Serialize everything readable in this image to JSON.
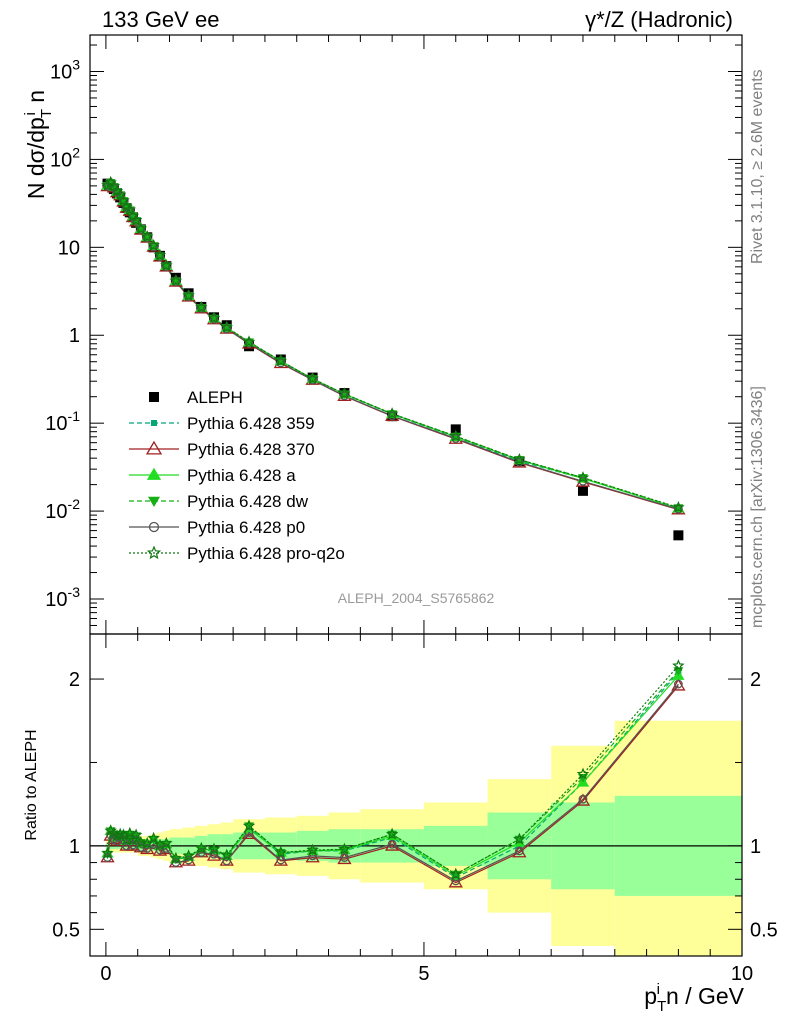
{
  "header": {
    "left": "133 GeV ee",
    "right": "γ*/Z (Hadronic)"
  },
  "side_labels": {
    "rivet": "Rivet 3.1.10, ≥ 2.6M events",
    "mcplots": "mcplots.cern.ch [arXiv:1306.3436]"
  },
  "watermark": "ALEPH_2004_S5765862",
  "chart_data": [
    {
      "type": "scatter",
      "panel": "main",
      "ylabel": "N dσ/dp_T^i n",
      "yscale": "log",
      "ylim": [
        0.0004,
        2600
      ],
      "xlim": [
        -0.25,
        10
      ],
      "y_ticks": [
        "10^-3",
        "10^-2",
        "10^-1",
        "1",
        "10",
        "10^2",
        "10^3"
      ],
      "legend_position": "center-left",
      "x": [
        0.025,
        0.075,
        0.125,
        0.175,
        0.225,
        0.275,
        0.325,
        0.375,
        0.425,
        0.475,
        0.55,
        0.65,
        0.75,
        0.85,
        0.95,
        1.1,
        1.3,
        1.5,
        1.7,
        1.9,
        2.25,
        2.75,
        3.25,
        3.75,
        4.5,
        5.5,
        6.5,
        7.5,
        9.0
      ],
      "series": [
        {
          "name": "ALEPH",
          "color": "#000000",
          "marker": "square",
          "style": "points",
          "values": [
            53,
            50,
            46,
            41,
            37,
            32,
            28,
            25,
            22,
            19,
            16,
            13,
            10,
            8,
            6.1,
            4.5,
            3.0,
            2.1,
            1.6,
            1.3,
            0.75,
            0.53,
            0.33,
            0.22,
            0.12,
            0.085,
            0.037,
            0.017,
            0.0053
          ]
        },
        {
          "name": "Pythia 6.428 359",
          "color": "#00a878",
          "marker": "small-square",
          "style": "dashed",
          "values": [
            50.4,
            54.5,
            49.2,
            43.0,
            39.6,
            33.9,
            28.8,
            26.7,
            22.7,
            20.2,
            16.2,
            13.1,
            10.4,
            8.0,
            6.15,
            4.13,
            2.79,
            2.06,
            1.55,
            1.21,
            0.83,
            0.5,
            0.32,
            0.213,
            0.126,
            0.069,
            0.037,
            0.0235,
            0.0108
          ]
        },
        {
          "name": "Pythia 6.428 370",
          "color": "#a02020",
          "marker": "open-triangle",
          "style": "solid",
          "values": [
            49.3,
            53.0,
            47.8,
            42.0,
            38.8,
            33.0,
            28.0,
            25.9,
            22.0,
            19.6,
            15.8,
            12.8,
            10.1,
            7.8,
            6.0,
            4.05,
            2.74,
            2.01,
            1.51,
            1.18,
            0.8,
            0.48,
            0.31,
            0.203,
            0.12,
            0.066,
            0.0355,
            0.0215,
            0.0104
          ]
        },
        {
          "name": "Pythia 6.428 a",
          "color": "#22dd22",
          "marker": "triangle",
          "style": "solid",
          "values": [
            50.6,
            54.4,
            49.0,
            43.1,
            39.4,
            33.9,
            28.8,
            26.6,
            22.6,
            20.2,
            16.2,
            13.1,
            10.4,
            8.0,
            6.15,
            4.14,
            2.8,
            2.06,
            1.56,
            1.22,
            0.83,
            0.51,
            0.32,
            0.214,
            0.127,
            0.07,
            0.038,
            0.0235,
            0.0107
          ]
        },
        {
          "name": "Pythia 6.428 dw",
          "color": "#16b016",
          "marker": "down-triangle",
          "style": "dashed",
          "values": [
            50.4,
            54.6,
            49.2,
            43.2,
            39.6,
            34.0,
            28.9,
            26.7,
            22.7,
            20.2,
            16.3,
            13.1,
            10.4,
            8.0,
            6.16,
            4.15,
            2.81,
            2.06,
            1.56,
            1.22,
            0.84,
            0.51,
            0.32,
            0.215,
            0.128,
            0.071,
            0.0385,
            0.024,
            0.0109
          ]
        },
        {
          "name": "Pythia 6.428 p0",
          "color": "#555555",
          "marker": "open-circle",
          "style": "solid",
          "values": [
            49.3,
            53.2,
            47.9,
            42.1,
            38.9,
            33.1,
            28.1,
            26.0,
            22.1,
            19.7,
            15.9,
            12.8,
            10.1,
            7.8,
            6.02,
            4.06,
            2.75,
            2.02,
            1.52,
            1.18,
            0.81,
            0.485,
            0.31,
            0.205,
            0.121,
            0.067,
            0.036,
            0.0218,
            0.0105
          ]
        },
        {
          "name": "Pythia 6.428 pro-q2o",
          "color": "#117711",
          "marker": "open-star",
          "style": "dotted",
          "values": [
            50.6,
            54.6,
            49.3,
            43.3,
            39.5,
            34.0,
            28.9,
            26.8,
            22.8,
            20.3,
            16.3,
            13.2,
            10.5,
            8.1,
            6.2,
            4.16,
            2.82,
            2.07,
            1.57,
            1.23,
            0.84,
            0.51,
            0.32,
            0.216,
            0.128,
            0.071,
            0.0385,
            0.024,
            0.011
          ]
        }
      ]
    },
    {
      "type": "line",
      "panel": "ratio",
      "ylabel": "Ratio to ALEPH",
      "xlabel": "p_T^i n / GeV",
      "xlim": [
        -0.25,
        10
      ],
      "ylim": [
        0.34,
        2.27
      ],
      "x_ticks": [
        "0",
        "5",
        "10"
      ],
      "y_ticks": [
        "0.5",
        "1",
        "2"
      ],
      "bands": {
        "bin_edges": [
          0,
          0.05,
          0.1,
          0.15,
          0.2,
          0.25,
          0.3,
          0.35,
          0.4,
          0.45,
          0.5,
          0.6,
          0.7,
          0.8,
          0.9,
          1.0,
          1.2,
          1.4,
          1.6,
          1.8,
          2.0,
          2.5,
          3.0,
          3.5,
          4.0,
          5.0,
          6.0,
          7.0,
          8.0,
          10.0
        ],
        "green_halfwidth": [
          0.02,
          0.02,
          0.02,
          0.02,
          0.02,
          0.02,
          0.02,
          0.02,
          0.02,
          0.02,
          0.03,
          0.03,
          0.03,
          0.04,
          0.04,
          0.05,
          0.05,
          0.06,
          0.07,
          0.07,
          0.08,
          0.08,
          0.09,
          0.1,
          0.1,
          0.12,
          0.2,
          0.26,
          0.3
        ],
        "yellow_halfwidth": [
          0.04,
          0.04,
          0.04,
          0.04,
          0.04,
          0.04,
          0.04,
          0.04,
          0.04,
          0.04,
          0.06,
          0.06,
          0.07,
          0.08,
          0.09,
          0.1,
          0.11,
          0.12,
          0.13,
          0.14,
          0.16,
          0.17,
          0.18,
          0.2,
          0.22,
          0.26,
          0.4,
          0.6,
          0.75
        ],
        "green_color": "#99ff99",
        "yellow_color": "#ffff99"
      },
      "series": [
        {
          "name": "Pythia 6.428 359",
          "color": "#00a878",
          "values": [
            0.95,
            1.09,
            1.07,
            1.05,
            1.07,
            1.06,
            1.03,
            1.07,
            1.03,
            1.06,
            1.01,
            1.01,
            1.04,
            1.0,
            1.01,
            0.92,
            0.93,
            0.98,
            0.97,
            0.93,
            1.11,
            0.95,
            0.97,
            0.97,
            1.05,
            0.81,
            1.0,
            1.38,
            2.04
          ]
        },
        {
          "name": "Pythia 6.428 370",
          "color": "#a02020",
          "values": [
            0.93,
            1.06,
            1.04,
            1.03,
            1.05,
            1.03,
            1.0,
            1.04,
            1.0,
            1.03,
            0.99,
            0.98,
            1.01,
            0.97,
            0.98,
            0.9,
            0.91,
            0.96,
            0.94,
            0.91,
            1.07,
            0.91,
            0.93,
            0.92,
            1.0,
            0.78,
            0.96,
            1.27,
            1.96
          ]
        },
        {
          "name": "Pythia 6.428 a",
          "color": "#22dd22",
          "values": [
            0.955,
            1.09,
            1.065,
            1.05,
            1.065,
            1.06,
            1.03,
            1.065,
            1.03,
            1.06,
            1.01,
            1.01,
            1.04,
            1.0,
            1.01,
            0.92,
            0.935,
            0.98,
            0.975,
            0.94,
            1.1,
            0.96,
            0.97,
            0.975,
            1.06,
            0.82,
            1.02,
            1.38,
            2.02
          ]
        },
        {
          "name": "Pythia 6.428 dw",
          "color": "#16b016",
          "values": [
            0.95,
            1.09,
            1.07,
            1.055,
            1.07,
            1.06,
            1.03,
            1.07,
            1.03,
            1.06,
            1.02,
            1.01,
            1.04,
            1.0,
            1.01,
            0.92,
            0.935,
            0.98,
            0.975,
            0.94,
            1.12,
            0.96,
            0.97,
            0.98,
            1.07,
            0.83,
            1.04,
            1.41,
            2.05
          ]
        },
        {
          "name": "Pythia 6.428 p0",
          "color": "#555555",
          "values": [
            0.93,
            1.065,
            1.04,
            1.03,
            1.05,
            1.035,
            1.0,
            1.04,
            1.005,
            1.035,
            0.99,
            0.985,
            1.01,
            0.975,
            0.985,
            0.9,
            0.915,
            0.96,
            0.95,
            0.91,
            1.08,
            0.915,
            0.94,
            0.93,
            1.01,
            0.79,
            0.97,
            1.28,
            1.97
          ]
        },
        {
          "name": "Pythia 6.428 pro-q2o",
          "color": "#117711",
          "values": [
            0.955,
            1.09,
            1.075,
            1.06,
            1.07,
            1.065,
            1.035,
            1.075,
            1.035,
            1.065,
            1.02,
            1.015,
            1.045,
            1.005,
            1.015,
            0.925,
            0.94,
            0.985,
            0.98,
            0.945,
            1.12,
            0.96,
            0.975,
            0.98,
            1.07,
            0.83,
            1.04,
            1.43,
            2.08
          ]
        }
      ]
    }
  ]
}
